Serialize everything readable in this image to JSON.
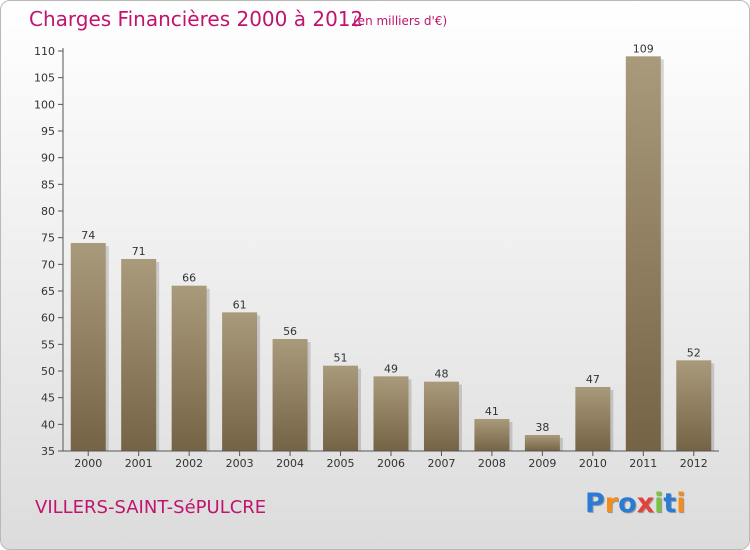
{
  "header": {
    "title": "Charges Financières 2000 à 2012",
    "unit": "(en milliers d'€)"
  },
  "footer": {
    "place": "VILLERS-SAINT-SéPULCRE",
    "logo": "Proxiti",
    "logo_colors": [
      "#2a7bd4",
      "#f28c1b",
      "#2a7bd4",
      "#e5413b",
      "#7cc242",
      "#2a7bd4",
      "#f28c1b"
    ]
  },
  "colors": {
    "accent": "#c0146e",
    "bar_light": "#aa9a7c",
    "bar_dark": "#756345"
  },
  "chart_data": {
    "type": "bar",
    "categories": [
      "2000",
      "2001",
      "2002",
      "2003",
      "2004",
      "2005",
      "2006",
      "2007",
      "2008",
      "2009",
      "2010",
      "2011",
      "2012"
    ],
    "values": [
      74,
      71,
      66,
      61,
      56,
      51,
      49,
      48,
      41,
      38,
      47,
      109,
      52
    ],
    "title": "Charges Financières 2000 à 2012",
    "ylim": [
      35,
      110
    ],
    "yticks": [
      35,
      40,
      45,
      50,
      55,
      60,
      65,
      70,
      75,
      80,
      85,
      90,
      95,
      100,
      105,
      110
    ],
    "grid": false,
    "legend": "none"
  }
}
